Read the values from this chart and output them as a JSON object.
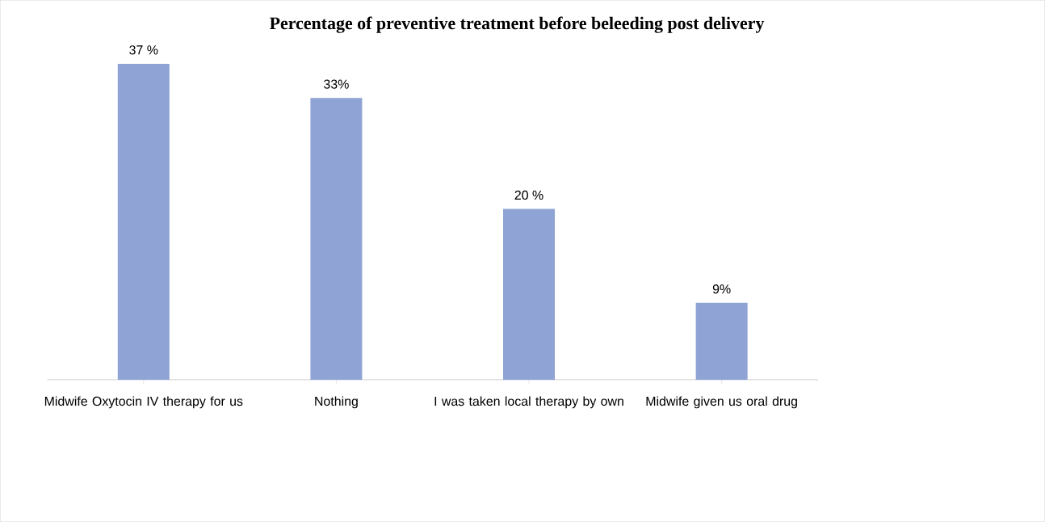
{
  "chart_data": {
    "type": "bar",
    "title": "Percentage of preventive treatment before beleeding post delivery",
    "categories": [
      "Midwife Oxytocin IV therapy for us",
      "Nothing",
      "I was taken local therapy by own",
      "Midwife given us oral drug"
    ],
    "values": [
      37,
      33,
      20,
      9
    ],
    "value_labels": [
      "37 %",
      "33%",
      "20 %",
      "9%"
    ],
    "color": "#8fa3d4"
  }
}
